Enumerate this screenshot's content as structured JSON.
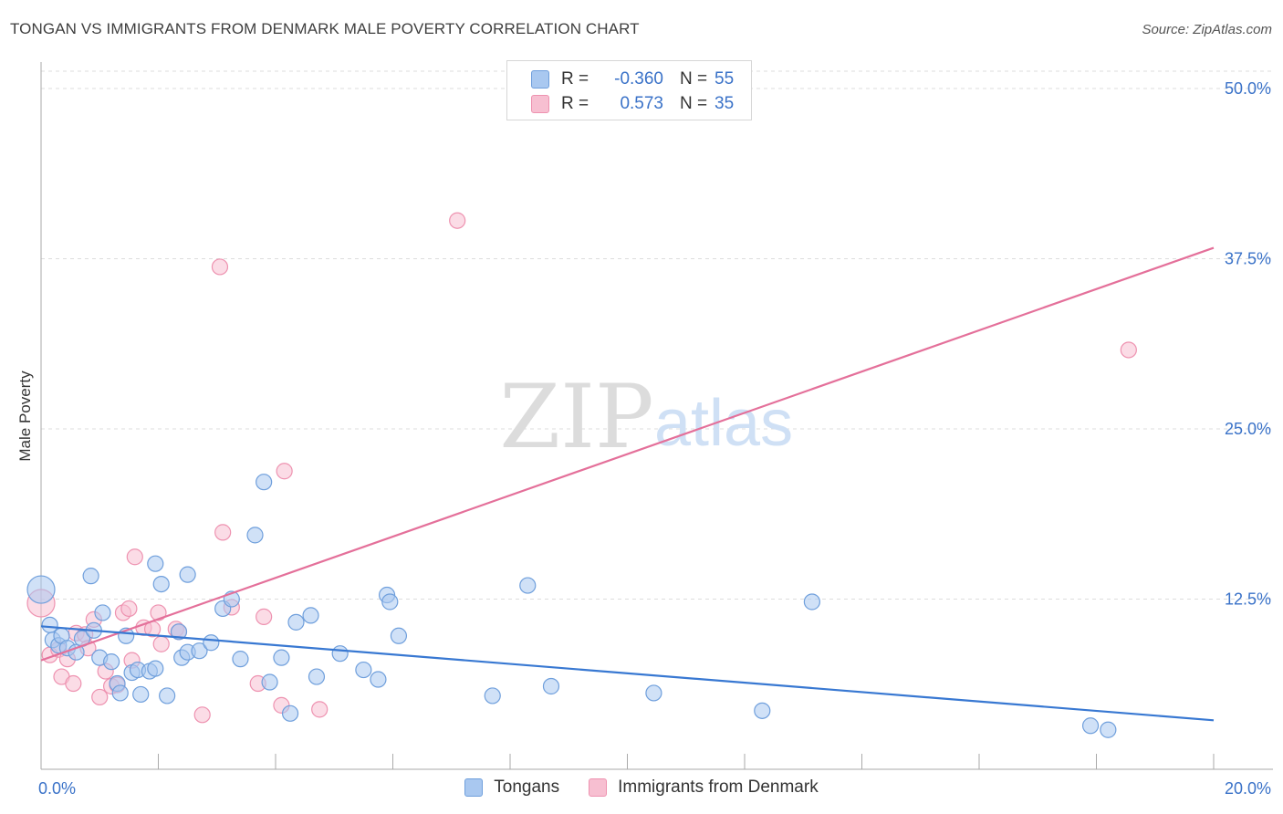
{
  "title": "TONGAN VS IMMIGRANTS FROM DENMARK MALE POVERTY CORRELATION CHART",
  "source": "Source: ZipAtlas.com",
  "watermark": {
    "zip": "ZIP",
    "atlas": "atlas"
  },
  "legend": {
    "rows": [
      {
        "r_label": "R =",
        "r_value": "-0.360",
        "n_label": "N =",
        "n_value": "55"
      },
      {
        "r_label": "R =",
        "r_value": "0.573",
        "n_label": "N =",
        "n_value": "35"
      }
    ]
  },
  "bottom_legend": {
    "series1": "Tongans",
    "series2": "Immigrants from Denmark"
  },
  "colors": {
    "tongans_fill": "#a9c8f0",
    "tongans_stroke": "#6f9fdc",
    "tongans_line": "#3878d2",
    "denmark_fill": "#f7bfd1",
    "denmark_stroke": "#ee92b0",
    "denmark_line": "#e4709a",
    "tick_label": "#3a72c8",
    "grid": "#dddddd"
  },
  "chart_data": {
    "type": "scatter",
    "title": "TONGAN VS IMMIGRANTS FROM DENMARK MALE POVERTY CORRELATION CHART",
    "xlabel": "",
    "ylabel": "Male Poverty",
    "xlim": [
      0,
      20
    ],
    "ylim": [
      0,
      52
    ],
    "x_tick_labels": [
      {
        "value": 0,
        "label": "0.0%"
      },
      {
        "value": 20,
        "label": "20.0%"
      }
    ],
    "y_tick_labels": [
      {
        "value": 12.5,
        "label": "12.5%"
      },
      {
        "value": 25,
        "label": "25.0%"
      },
      {
        "value": 37.5,
        "label": "37.5%"
      },
      {
        "value": 50,
        "label": "50.0%"
      }
    ],
    "series": [
      {
        "name": "Tongans",
        "r": -0.36,
        "n": 55,
        "trend": {
          "x0": 0,
          "y0": 10.5,
          "x1": 20,
          "y1": 3.6
        },
        "points": [
          {
            "x": 0.0,
            "y": 13.2,
            "big": true
          },
          {
            "x": 0.15,
            "y": 10.6
          },
          {
            "x": 0.2,
            "y": 9.5
          },
          {
            "x": 0.3,
            "y": 9.1
          },
          {
            "x": 0.35,
            "y": 9.8
          },
          {
            "x": 0.45,
            "y": 8.9
          },
          {
            "x": 0.6,
            "y": 8.6
          },
          {
            "x": 0.7,
            "y": 9.6
          },
          {
            "x": 0.85,
            "y": 14.2
          },
          {
            "x": 0.9,
            "y": 10.2
          },
          {
            "x": 1.05,
            "y": 11.5
          },
          {
            "x": 1.0,
            "y": 8.2
          },
          {
            "x": 1.2,
            "y": 7.9
          },
          {
            "x": 1.3,
            "y": 6.3
          },
          {
            "x": 1.35,
            "y": 5.6
          },
          {
            "x": 1.45,
            "y": 9.8
          },
          {
            "x": 1.55,
            "y": 7.1
          },
          {
            "x": 1.65,
            "y": 7.3
          },
          {
            "x": 1.7,
            "y": 5.5
          },
          {
            "x": 1.85,
            "y": 7.2
          },
          {
            "x": 1.95,
            "y": 7.4
          },
          {
            "x": 1.95,
            "y": 15.1
          },
          {
            "x": 2.05,
            "y": 13.6
          },
          {
            "x": 2.15,
            "y": 5.4
          },
          {
            "x": 2.35,
            "y": 10.1
          },
          {
            "x": 2.4,
            "y": 8.2
          },
          {
            "x": 2.5,
            "y": 8.6
          },
          {
            "x": 2.5,
            "y": 14.3
          },
          {
            "x": 2.7,
            "y": 8.7
          },
          {
            "x": 2.9,
            "y": 9.3
          },
          {
            "x": 3.1,
            "y": 11.8
          },
          {
            "x": 3.25,
            "y": 12.5
          },
          {
            "x": 3.4,
            "y": 8.1
          },
          {
            "x": 3.65,
            "y": 17.2
          },
          {
            "x": 3.8,
            "y": 21.1
          },
          {
            "x": 3.9,
            "y": 6.4
          },
          {
            "x": 4.1,
            "y": 8.2
          },
          {
            "x": 4.25,
            "y": 4.1
          },
          {
            "x": 4.35,
            "y": 10.8
          },
          {
            "x": 4.6,
            "y": 11.3
          },
          {
            "x": 4.7,
            "y": 6.8
          },
          {
            "x": 5.1,
            "y": 8.5
          },
          {
            "x": 5.5,
            "y": 7.3
          },
          {
            "x": 5.75,
            "y": 6.6
          },
          {
            "x": 5.9,
            "y": 12.8
          },
          {
            "x": 5.95,
            "y": 12.3
          },
          {
            "x": 6.1,
            "y": 9.8
          },
          {
            "x": 7.7,
            "y": 5.4
          },
          {
            "x": 8.3,
            "y": 13.5
          },
          {
            "x": 8.7,
            "y": 6.1
          },
          {
            "x": 10.45,
            "y": 5.6
          },
          {
            "x": 12.3,
            "y": 4.3
          },
          {
            "x": 13.15,
            "y": 12.3
          },
          {
            "x": 17.9,
            "y": 3.2
          },
          {
            "x": 18.2,
            "y": 2.9
          }
        ]
      },
      {
        "name": "Immigrants from Denmark",
        "r": 0.573,
        "n": 35,
        "trend": {
          "x0": 0,
          "y0": 8.0,
          "x1": 20,
          "y1": 38.3
        },
        "points": [
          {
            "x": 0.0,
            "y": 12.2,
            "big": true
          },
          {
            "x": 0.15,
            "y": 8.4
          },
          {
            "x": 0.3,
            "y": 8.8
          },
          {
            "x": 0.35,
            "y": 6.8
          },
          {
            "x": 0.45,
            "y": 8.1
          },
          {
            "x": 0.55,
            "y": 6.3
          },
          {
            "x": 0.6,
            "y": 10.0
          },
          {
            "x": 0.75,
            "y": 9.9
          },
          {
            "x": 0.8,
            "y": 8.9
          },
          {
            "x": 0.9,
            "y": 11.0
          },
          {
            "x": 1.0,
            "y": 5.3
          },
          {
            "x": 1.1,
            "y": 7.2
          },
          {
            "x": 1.2,
            "y": 6.1
          },
          {
            "x": 1.3,
            "y": 6.2
          },
          {
            "x": 1.4,
            "y": 11.5
          },
          {
            "x": 1.5,
            "y": 11.8
          },
          {
            "x": 1.55,
            "y": 8.0
          },
          {
            "x": 1.6,
            "y": 15.6
          },
          {
            "x": 1.75,
            "y": 10.4
          },
          {
            "x": 1.9,
            "y": 10.3
          },
          {
            "x": 2.0,
            "y": 11.5
          },
          {
            "x": 2.05,
            "y": 9.2
          },
          {
            "x": 2.3,
            "y": 10.3
          },
          {
            "x": 2.35,
            "y": 10.1
          },
          {
            "x": 2.75,
            "y": 4.0
          },
          {
            "x": 3.05,
            "y": 36.9
          },
          {
            "x": 3.1,
            "y": 17.4
          },
          {
            "x": 3.25,
            "y": 11.9
          },
          {
            "x": 3.7,
            "y": 6.3
          },
          {
            "x": 3.8,
            "y": 11.2
          },
          {
            "x": 4.1,
            "y": 4.7
          },
          {
            "x": 4.15,
            "y": 21.9
          },
          {
            "x": 4.75,
            "y": 4.4
          },
          {
            "x": 7.1,
            "y": 40.3
          },
          {
            "x": 18.55,
            "y": 30.8
          }
        ]
      }
    ]
  }
}
